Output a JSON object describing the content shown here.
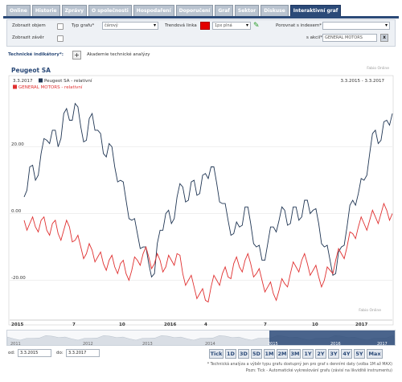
{
  "tabs": [
    "Online",
    "Historie",
    "Zprávy",
    "O společnosti",
    "Hospodaření",
    "Doporučení",
    "Graf",
    "Sektor",
    "Diskuse",
    "Interaktivní graf"
  ],
  "active_tab": "Interaktivní graf",
  "controls": {
    "show_volume": "Zobrazit objem",
    "show_close": "Zobrazit závěr",
    "chart_type_label": "Typ grafu*",
    "chart_type_value": "čárový",
    "trend_label": "Trendová linka",
    "trend_style": "1px plná",
    "compare_index_label": "Porovnat s indexem*",
    "compare_index_value": "",
    "compare_stock_label": "s akcií*",
    "compare_stock_value": "GENERAL MOTORS"
  },
  "indicators": {
    "label": "Technické indikátory*:",
    "academy": "Akademie technické analýzy"
  },
  "chart": {
    "title": "Peugeot SA",
    "watermark": "Fabio Online",
    "date_range": "3.3.2015 - 3.3.2017",
    "start_date": "3.3.2017",
    "colors": {
      "peugeot": "#1f3553",
      "gm": "#e03030",
      "accent": "#2b4a78"
    }
  },
  "chart_data": {
    "type": "line",
    "series": [
      {
        "name": "Peugeot SA - relativní",
        "color": "#1f3553",
        "values": [
          5,
          14,
          10,
          18,
          22,
          25,
          20,
          30,
          28,
          33,
          26,
          22,
          30,
          25,
          18,
          21,
          14,
          10,
          4,
          -2,
          -6,
          -10,
          -15,
          -18,
          -5,
          0,
          -3,
          5,
          8,
          4,
          10,
          6,
          12,
          14,
          9,
          3,
          -2,
          -6,
          -4,
          2,
          -3,
          -10,
          -14,
          -9,
          -4,
          -2,
          1,
          -3,
          2,
          -1,
          4,
          1,
          -3,
          -10,
          -14,
          -18,
          -10,
          -4,
          4,
          6,
          10,
          18,
          25,
          22,
          28,
          30
        ]
      },
      {
        "name": "GENERAL MOTORS - relativní",
        "color": "#e03030",
        "values": [
          -2,
          -3,
          -4,
          -2,
          -5,
          -3,
          -6,
          -5,
          -4,
          -8,
          -10,
          -12,
          -11,
          -13,
          -15,
          -14,
          -16,
          -15,
          -18,
          -17,
          -14,
          -12,
          -13,
          -15,
          -14,
          -16,
          -14,
          -12,
          -18,
          -20,
          -22,
          -24,
          -26,
          -22,
          -20,
          -18,
          -19,
          -15,
          -16,
          -14,
          -15,
          -18,
          -20,
          -22,
          -24,
          -23,
          -21,
          -18,
          -16,
          -14,
          -15,
          -17,
          -19,
          -20,
          -17,
          -14,
          -12,
          -10,
          -6,
          -4,
          -3,
          -2,
          -1,
          0,
          1,
          0
        ]
      }
    ],
    "x_ticks": [
      "2015",
      "7",
      "10",
      "2016",
      "4",
      "7",
      "10",
      "2017"
    ],
    "y_ticks": [
      "20.00",
      "0.00",
      "-20.00"
    ],
    "ylim": [
      -30,
      38
    ],
    "grid": true,
    "legend": "top-left"
  },
  "navigator_years": [
    "2011",
    "2012",
    "2013",
    "2014",
    "2015",
    "2016",
    "2017"
  ],
  "range": {
    "from_label": "od:",
    "from": "3.3.2015",
    "to_label": "do:",
    "to": "3.3.2017"
  },
  "zoom_buttons": [
    "Tick",
    "1D",
    "3D",
    "5D",
    "1M",
    "2M",
    "3M",
    "1Y",
    "2Y",
    "3Y",
    "4Y",
    "5Y",
    "Max"
  ],
  "notes": [
    "* Technická analýza a výběr typu grafu dostupný jen pro graf s denními daty (volba 1M až MAX)",
    "Pozn: Tick - Automatické vykreslování grafu (závisí na likviditě instrumentu)"
  ]
}
